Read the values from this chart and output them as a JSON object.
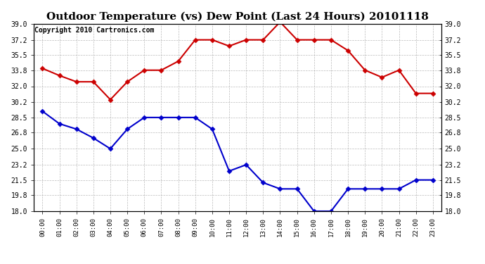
{
  "title": "Outdoor Temperature (vs) Dew Point (Last 24 Hours) 20101118",
  "copyright": "Copyright 2010 Cartronics.com",
  "hours": [
    "00:00",
    "01:00",
    "02:00",
    "03:00",
    "04:00",
    "05:00",
    "06:00",
    "07:00",
    "08:00",
    "09:00",
    "10:00",
    "11:00",
    "12:00",
    "13:00",
    "14:00",
    "15:00",
    "16:00",
    "17:00",
    "18:00",
    "19:00",
    "20:00",
    "21:00",
    "22:00",
    "23:00"
  ],
  "temp": [
    34.0,
    33.2,
    32.5,
    32.5,
    30.5,
    32.5,
    33.8,
    33.8,
    34.8,
    37.2,
    37.2,
    36.5,
    37.2,
    37.2,
    39.2,
    37.2,
    37.2,
    37.2,
    36.0,
    33.8,
    33.0,
    33.8,
    31.2,
    31.2
  ],
  "dewpoint": [
    29.2,
    27.8,
    27.2,
    26.2,
    25.0,
    27.2,
    28.5,
    28.5,
    28.5,
    28.5,
    27.2,
    22.5,
    23.2,
    21.2,
    20.5,
    20.5,
    18.0,
    18.0,
    20.5,
    20.5,
    20.5,
    20.5,
    21.5,
    21.5
  ],
  "temp_color": "#cc0000",
  "dew_color": "#0000cc",
  "bg_color": "#ffffff",
  "plot_bg_color": "#ffffff",
  "grid_color": "#aaaaaa",
  "ylim": [
    18.0,
    39.0
  ],
  "yticks": [
    18.0,
    19.8,
    21.5,
    23.2,
    25.0,
    26.8,
    28.5,
    30.2,
    32.0,
    33.8,
    35.5,
    37.2,
    39.0
  ],
  "title_fontsize": 11,
  "copyright_fontsize": 7,
  "linewidth": 1.5,
  "markersize": 3.5
}
